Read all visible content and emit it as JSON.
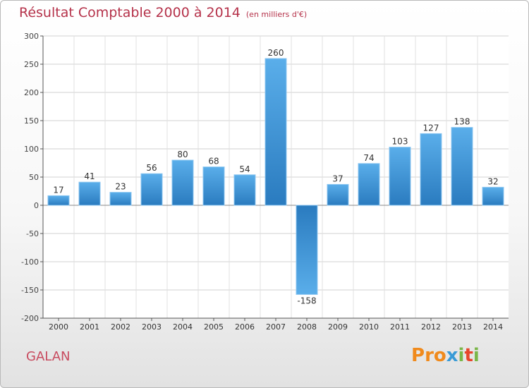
{
  "chart_data": {
    "type": "bar",
    "title": "Résultat Comptable 2000 à 2014",
    "subtitle": "(en milliers d'€)",
    "xlabel": "",
    "ylabel": "",
    "ylim": [
      -200,
      300
    ],
    "yticks": [
      300,
      250,
      200,
      150,
      100,
      50,
      0,
      -50,
      -100,
      -150,
      -200
    ],
    "ytick_labels": [
      "300",
      "250",
      "200",
      "150",
      "100",
      "50",
      "0",
      "-50",
      "-100",
      "-150",
      "-200"
    ],
    "grid": true,
    "categories": [
      "2000",
      "2001",
      "2002",
      "2003",
      "2004",
      "2005",
      "2006",
      "2007",
      "2008",
      "2009",
      "2010",
      "2011",
      "2012",
      "2013",
      "2014"
    ],
    "values": [
      17,
      41,
      23,
      56,
      80,
      68,
      54,
      260,
      -158,
      37,
      74,
      103,
      127,
      138,
      32
    ],
    "value_labels": [
      "17",
      "41",
      "23",
      "56",
      "80",
      "68",
      "54",
      "260",
      "-158",
      "37",
      "74",
      "103",
      "127",
      "138",
      "32"
    ]
  },
  "footer": {
    "place": "GALAN",
    "logo_letters": [
      "P",
      "r",
      "o",
      "x",
      "i",
      "t",
      "i"
    ]
  },
  "colors": {
    "title": "#b5324a",
    "bar_light": "#5aaeea",
    "bar_dark": "#2a7bbf",
    "logo": [
      "#f08a1c",
      "#f08a1c",
      "#f08a1c",
      "#3a9bd6",
      "#7ab648",
      "#e8452b",
      "#7ab648"
    ]
  }
}
